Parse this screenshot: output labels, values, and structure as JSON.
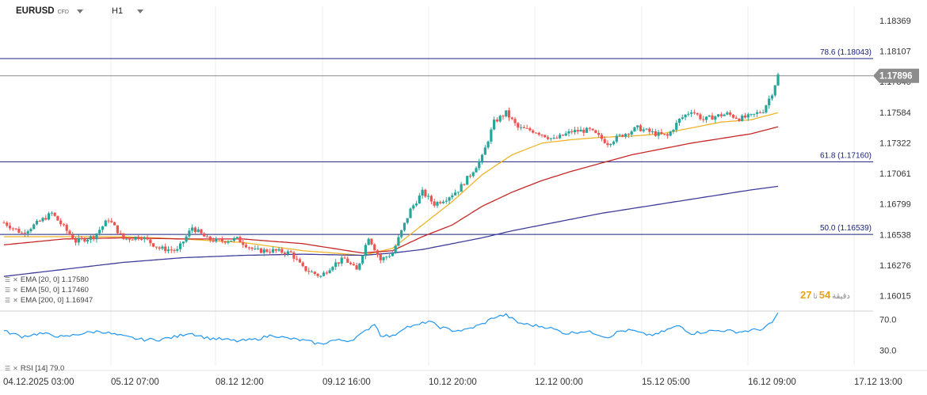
{
  "header": {
    "symbol": "EURUSD",
    "instrument_type": "CFD",
    "timeframe": "H1"
  },
  "indicators": {
    "ema20": "EMA [20, 0] 1.17580",
    "ema50": "EMA [50, 0] 1.17460",
    "ema200": "EMA [200, 0] 1.16947",
    "rsi": "RSI [14] 79.0"
  },
  "countdown": {
    "seconds_value": "27",
    "seconds_unit": "ثا",
    "minutes_value": "54",
    "minutes_label": "دقيقة"
  },
  "colors": {
    "up": "#26a69a",
    "down": "#ef5350",
    "ema20": "#f0b429",
    "ema50": "#c62828",
    "ema200": "#3f3d99",
    "rsi": "#2196f3",
    "fib": "#1a237e",
    "price_badge": "#8c8c8c"
  },
  "chart_data": {
    "type": "candlestick",
    "y_ticks": [
      "1.18369",
      "1.18107",
      "1.17846",
      "1.17584",
      "1.17322",
      "1.17061",
      "1.16799",
      "1.16538",
      "1.16276",
      "1.16015"
    ],
    "ylim": [
      1.1589,
      1.1849
    ],
    "x_ticks": [
      "04.12.2025 03:00",
      "05.12 07:00",
      "08.12 12:00",
      "09.12 16:00",
      "10.12 20:00",
      "12.12 00:00",
      "15.12 05:00",
      "16.12 09:00",
      "17.12 13:00"
    ],
    "current_price": "1.17896",
    "current_price_value": 1.17896,
    "fib_levels": [
      {
        "label": "78.6 (1.18043)",
        "value": 1.18043
      },
      {
        "label": "61.8 (1.17160)",
        "value": 1.1716
      },
      {
        "label": "50.0 (1.16539)",
        "value": 1.16539
      }
    ],
    "close_anchors": [
      [
        0,
        1.1664
      ],
      [
        6,
        1.1655
      ],
      [
        12,
        1.1665
      ],
      [
        16,
        1.1672
      ],
      [
        20,
        1.166
      ],
      [
        24,
        1.1648
      ],
      [
        30,
        1.1652
      ],
      [
        35,
        1.1667
      ],
      [
        40,
        1.165
      ],
      [
        46,
        1.1652
      ],
      [
        52,
        1.1642
      ],
      [
        58,
        1.164
      ],
      [
        63,
        1.166
      ],
      [
        68,
        1.165
      ],
      [
        72,
        1.1648
      ],
      [
        78,
        1.165
      ],
      [
        84,
        1.164
      ],
      [
        90,
        1.164
      ],
      [
        96,
        1.1638
      ],
      [
        100,
        1.1625
      ],
      [
        106,
        1.1618
      ],
      [
        110,
        1.1628
      ],
      [
        114,
        1.1633
      ],
      [
        118,
        1.1623
      ],
      [
        122,
        1.1652
      ],
      [
        126,
        1.1632
      ],
      [
        130,
        1.1638
      ],
      [
        136,
        1.1675
      ],
      [
        140,
        1.169
      ],
      [
        144,
        1.168
      ],
      [
        148,
        1.1685
      ],
      [
        152,
        1.1692
      ],
      [
        156,
        1.1705
      ],
      [
        160,
        1.172
      ],
      [
        164,
        1.175
      ],
      [
        168,
        1.1758
      ],
      [
        172,
        1.1745
      ],
      [
        178,
        1.1742
      ],
      [
        184,
        1.1735
      ],
      [
        190,
        1.1742
      ],
      [
        196,
        1.1743
      ],
      [
        202,
        1.1732
      ],
      [
        206,
        1.1738
      ],
      [
        212,
        1.1745
      ],
      [
        218,
        1.174
      ],
      [
        222,
        1.1738
      ],
      [
        226,
        1.1752
      ],
      [
        230,
        1.176
      ],
      [
        234,
        1.1752
      ],
      [
        238,
        1.1755
      ],
      [
        242,
        1.1757
      ],
      [
        246,
        1.1753
      ],
      [
        250,
        1.1755
      ],
      [
        254,
        1.176
      ],
      [
        257,
        1.1775
      ],
      [
        259,
        1.179
      ]
    ],
    "ema_series": [
      {
        "name": "EMA [20, 0]",
        "anchors": [
          [
            0,
            1.1652
          ],
          [
            20,
            1.1652
          ],
          [
            40,
            1.1652
          ],
          [
            60,
            1.165
          ],
          [
            80,
            1.1647
          ],
          [
            100,
            1.164
          ],
          [
            120,
            1.1636
          ],
          [
            130,
            1.1642
          ],
          [
            140,
            1.1662
          ],
          [
            150,
            1.1682
          ],
          [
            160,
            1.1705
          ],
          [
            170,
            1.1722
          ],
          [
            180,
            1.1732
          ],
          [
            190,
            1.1735
          ],
          [
            200,
            1.1737
          ],
          [
            210,
            1.1738
          ],
          [
            220,
            1.174
          ],
          [
            230,
            1.1745
          ],
          [
            240,
            1.175
          ],
          [
            250,
            1.1752
          ],
          [
            259,
            1.1758
          ]
        ]
      },
      {
        "name": "EMA [50, 0]",
        "anchors": [
          [
            0,
            1.1645
          ],
          [
            20,
            1.165
          ],
          [
            40,
            1.1651
          ],
          [
            60,
            1.165
          ],
          [
            80,
            1.165
          ],
          [
            100,
            1.1646
          ],
          [
            120,
            1.1638
          ],
          [
            130,
            1.164
          ],
          [
            140,
            1.1652
          ],
          [
            150,
            1.1662
          ],
          [
            160,
            1.1678
          ],
          [
            170,
            1.169
          ],
          [
            180,
            1.17
          ],
          [
            190,
            1.1708
          ],
          [
            200,
            1.1715
          ],
          [
            210,
            1.1722
          ],
          [
            220,
            1.1727
          ],
          [
            230,
            1.1732
          ],
          [
            240,
            1.1736
          ],
          [
            250,
            1.174
          ],
          [
            259,
            1.1746
          ]
        ]
      },
      {
        "name": "EMA [200, 0]",
        "anchors": [
          [
            0,
            1.1618
          ],
          [
            20,
            1.1624
          ],
          [
            40,
            1.163
          ],
          [
            60,
            1.1634
          ],
          [
            80,
            1.1636
          ],
          [
            100,
            1.1637
          ],
          [
            120,
            1.1636
          ],
          [
            130,
            1.1638
          ],
          [
            140,
            1.1641
          ],
          [
            150,
            1.1646
          ],
          [
            160,
            1.1651
          ],
          [
            170,
            1.1657
          ],
          [
            180,
            1.1662
          ],
          [
            190,
            1.1667
          ],
          [
            200,
            1.1672
          ],
          [
            210,
            1.1676
          ],
          [
            220,
            1.168
          ],
          [
            230,
            1.1684
          ],
          [
            240,
            1.1688
          ],
          [
            250,
            1.1692
          ],
          [
            259,
            1.1695
          ]
        ]
      }
    ],
    "rsi": {
      "name": "RSI [14]",
      "y_ticks": [
        "70.0",
        "30.0"
      ],
      "ylim": [
        10,
        80
      ],
      "anchors": [
        [
          0,
          55
        ],
        [
          6,
          48
        ],
        [
          12,
          52
        ],
        [
          16,
          50
        ],
        [
          20,
          47
        ],
        [
          26,
          52
        ],
        [
          32,
          55
        ],
        [
          40,
          48
        ],
        [
          46,
          44
        ],
        [
          52,
          44
        ],
        [
          58,
          48
        ],
        [
          62,
          53
        ],
        [
          68,
          46
        ],
        [
          74,
          44
        ],
        [
          78,
          42
        ],
        [
          84,
          44
        ],
        [
          90,
          50
        ],
        [
          94,
          46
        ],
        [
          100,
          43
        ],
        [
          106,
          38
        ],
        [
          110,
          43
        ],
        [
          116,
          43
        ],
        [
          120,
          52
        ],
        [
          124,
          65
        ],
        [
          126,
          50
        ],
        [
          130,
          48
        ],
        [
          134,
          60
        ],
        [
          138,
          62
        ],
        [
          142,
          68
        ],
        [
          146,
          60
        ],
        [
          150,
          56
        ],
        [
          154,
          56
        ],
        [
          160,
          64
        ],
        [
          164,
          73
        ],
        [
          168,
          76
        ],
        [
          172,
          66
        ],
        [
          176,
          63
        ],
        [
          182,
          60
        ],
        [
          188,
          52
        ],
        [
          194,
          55
        ],
        [
          198,
          52
        ],
        [
          202,
          47
        ],
        [
          206,
          55
        ],
        [
          210,
          56
        ],
        [
          214,
          51
        ],
        [
          218,
          50
        ],
        [
          222,
          57
        ],
        [
          226,
          62
        ],
        [
          230,
          52
        ],
        [
          236,
          55
        ],
        [
          240,
          56
        ],
        [
          246,
          54
        ],
        [
          250,
          56
        ],
        [
          254,
          58
        ],
        [
          257,
          66
        ],
        [
          259,
          79
        ]
      ]
    }
  }
}
